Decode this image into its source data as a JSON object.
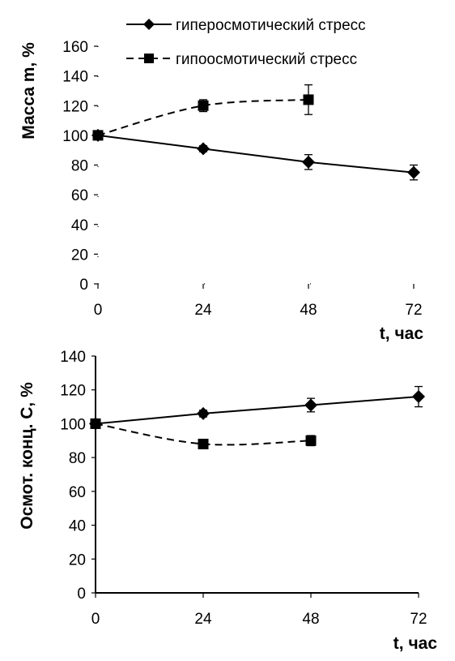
{
  "legend": {
    "hyper_label": "гиперосмотический стресс",
    "hypo_label": "гипоосмотический стресс"
  },
  "chart_data": [
    {
      "type": "line",
      "title": "",
      "ylabel": "Масса m, %",
      "xlabel": "t, час",
      "x": [
        0,
        24,
        48,
        72
      ],
      "x_ticks": [
        "0",
        "24",
        "48",
        "72"
      ],
      "ylim": [
        0,
        160
      ],
      "y_ticks": [
        "0",
        "20",
        "40",
        "60",
        "80",
        "100",
        "120",
        "140",
        "160"
      ],
      "series": [
        {
          "name": "гиперосмотический стресс",
          "marker": "diamond",
          "line": "solid",
          "x": [
            0,
            24,
            48,
            72
          ],
          "values": [
            100,
            91,
            82,
            75
          ],
          "errors": [
            3,
            2,
            5,
            5
          ]
        },
        {
          "name": "гипоосмотический стресс",
          "marker": "square",
          "line": "dashed",
          "x": [
            0,
            24,
            48
          ],
          "values": [
            100,
            120,
            124
          ],
          "errors": [
            3,
            4,
            10
          ]
        }
      ],
      "legend_position": "top"
    },
    {
      "type": "line",
      "title": "",
      "ylabel": "Осмот. конц. С, %",
      "xlabel": "t, час",
      "x": [
        0,
        24,
        48,
        72
      ],
      "x_ticks": [
        "0",
        "24",
        "48",
        "72"
      ],
      "ylim": [
        0,
        140
      ],
      "y_ticks": [
        "0",
        "20",
        "40",
        "60",
        "80",
        "100",
        "120",
        "140"
      ],
      "series": [
        {
          "name": "гиперосмотический стресс",
          "marker": "diamond",
          "line": "solid",
          "x": [
            0,
            24,
            48,
            72
          ],
          "values": [
            100,
            106,
            111,
            116
          ],
          "errors": [
            2,
            2,
            4,
            6
          ]
        },
        {
          "name": "гипоосмотический стресс",
          "marker": "square",
          "line": "dashed",
          "x": [
            0,
            24,
            48
          ],
          "values": [
            100,
            88,
            90
          ],
          "errors": [
            2,
            1,
            3
          ]
        }
      ]
    }
  ]
}
